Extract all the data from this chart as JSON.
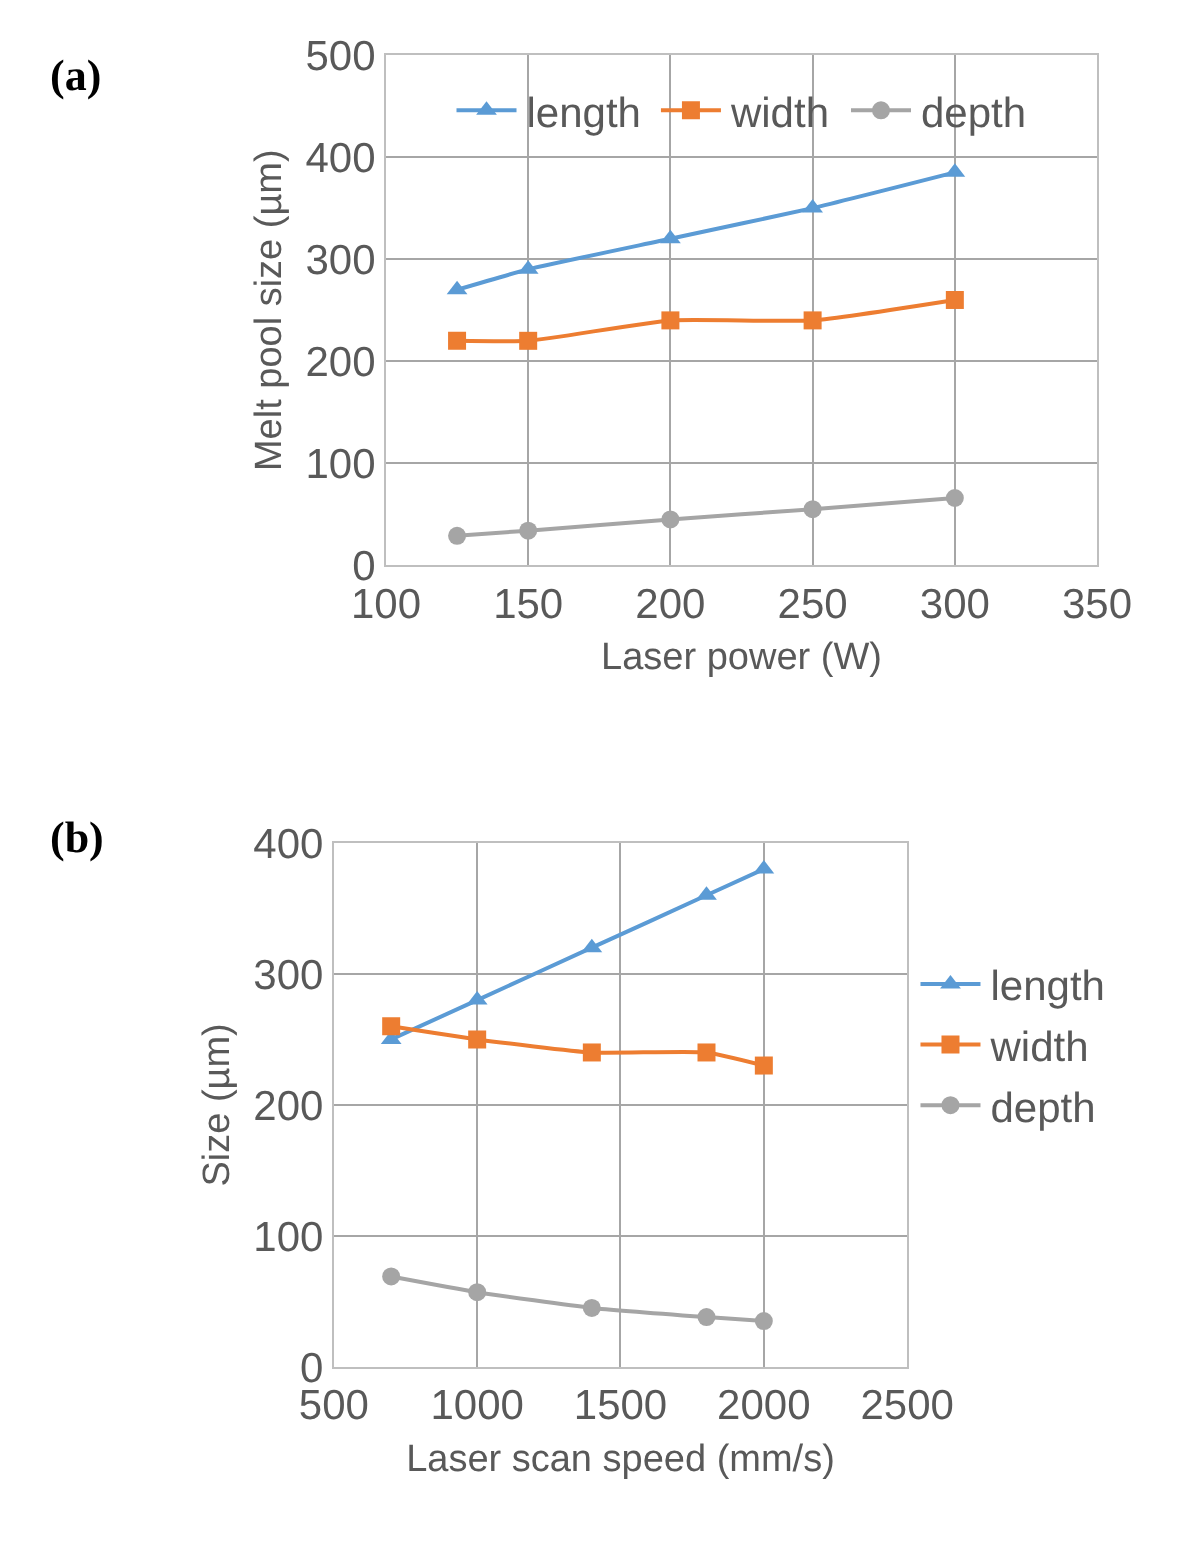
{
  "chart_data": [
    {
      "type": "line",
      "title": "(a)",
      "xlabel": "Laser power (W)",
      "ylabel": "Melt pool size (µm)",
      "x": [
        125,
        150,
        200,
        250,
        300
      ],
      "xlim": [
        100,
        350
      ],
      "xticks": [
        100,
        150,
        200,
        250,
        300,
        350
      ],
      "ylim": [
        0,
        500
      ],
      "yticks": [
        0,
        100,
        200,
        300,
        400,
        500
      ],
      "grid": true,
      "legend": "top",
      "series": [
        {
          "name": "length",
          "color": "#5b9bd5",
          "marker": "triangle",
          "values": [
            270,
            290,
            320,
            350,
            385
          ]
        },
        {
          "name": "width",
          "color": "#ed7d31",
          "marker": "square",
          "values": [
            220,
            220,
            240,
            240,
            260
          ]
        },
        {
          "name": "depth",
          "color": "#a5a5a5",
          "marker": "circle",
          "values": [
            29,
            34,
            45,
            55,
            66
          ]
        }
      ]
    },
    {
      "type": "line",
      "title": "(b)",
      "xlabel": "Laser scan speed (mm/s)",
      "ylabel": "Size (µm)",
      "x": [
        700,
        1000,
        1400,
        1800,
        2000
      ],
      "xlim": [
        500,
        2500
      ],
      "xticks": [
        500,
        1000,
        1500,
        2000,
        2500
      ],
      "ylim": [
        0,
        400
      ],
      "yticks": [
        0,
        100,
        200,
        300,
        400
      ],
      "grid": true,
      "legend": "right",
      "series": [
        {
          "name": "length",
          "color": "#5b9bd5",
          "marker": "triangle",
          "values": [
            250,
            280,
            320,
            360,
            380
          ]
        },
        {
          "name": "width",
          "color": "#ed7d31",
          "marker": "square",
          "values": [
            260,
            250,
            240,
            240,
            230
          ]
        },
        {
          "name": "depth",
          "color": "#a5a5a5",
          "marker": "circle",
          "values": [
            69,
            57,
            45,
            38,
            35
          ]
        }
      ]
    }
  ]
}
